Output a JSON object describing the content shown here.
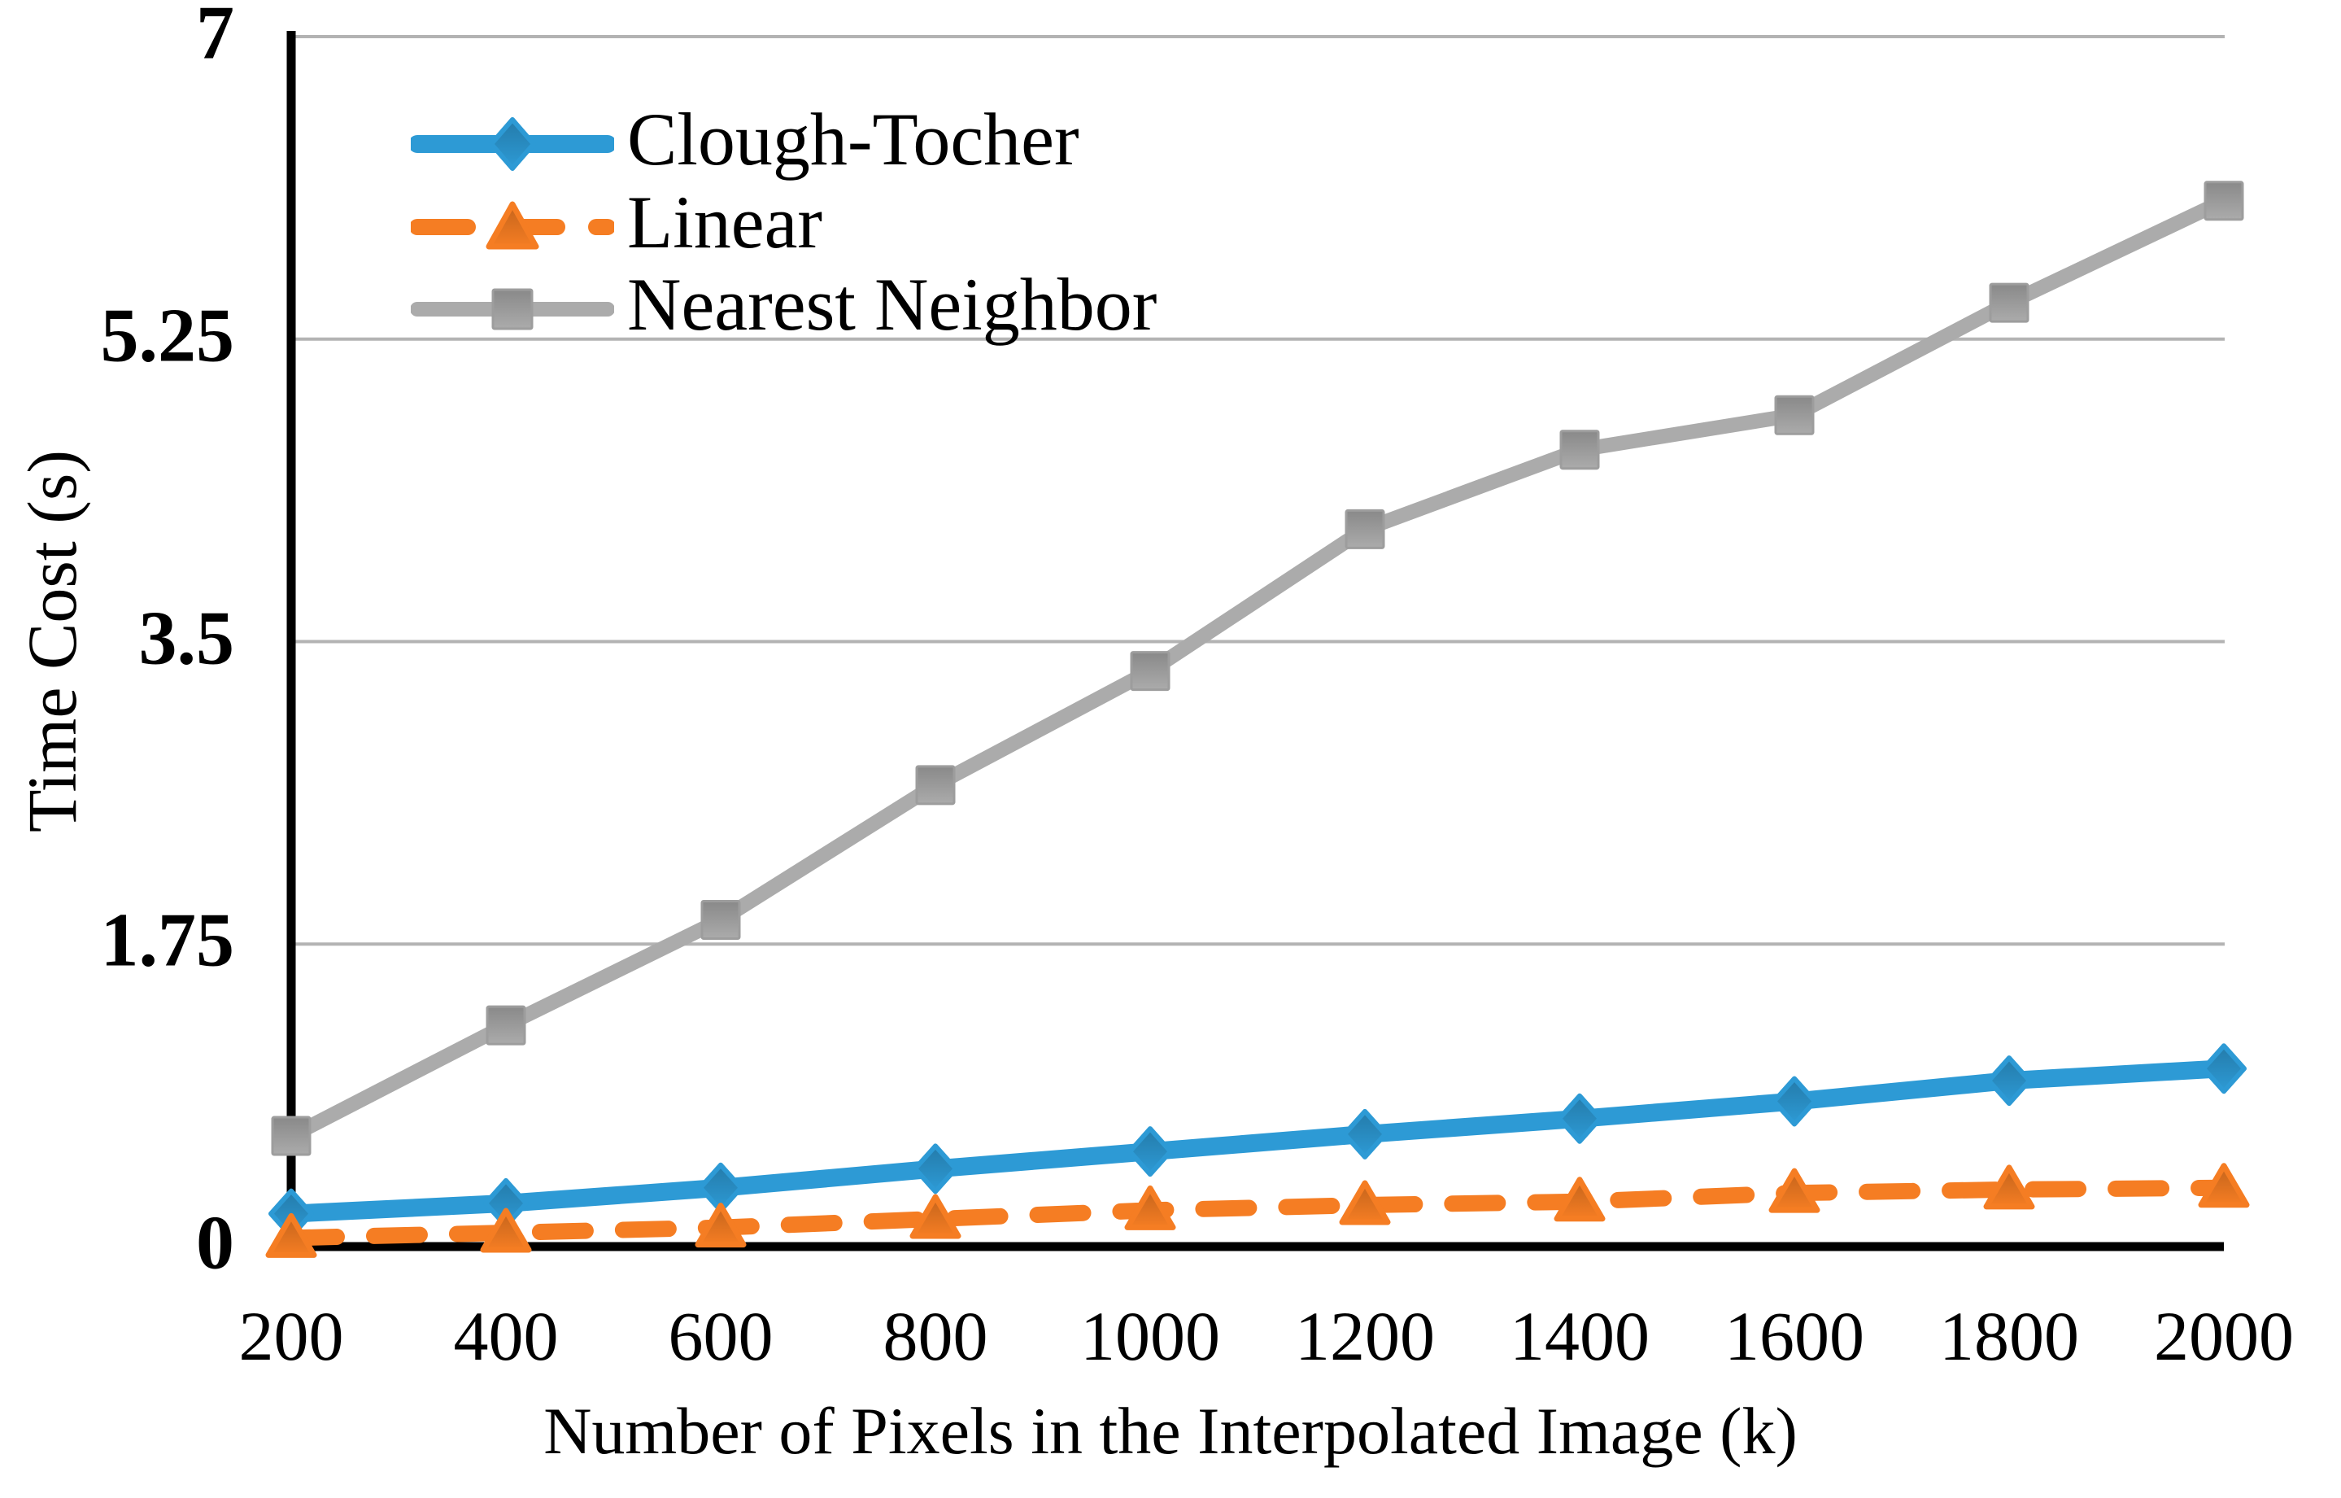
{
  "chart_data": {
    "type": "line",
    "title": "",
    "xlabel": "Number of Pixels in the Interpolated Image (k)",
    "ylabel": "Time Cost (s)",
    "categories": [
      200,
      400,
      600,
      800,
      1000,
      1200,
      1400,
      1600,
      1800,
      2000
    ],
    "x_tick_labels": [
      "200",
      "400",
      "600",
      "800",
      "1000",
      "1200",
      "1400",
      "1600",
      "1800",
      "2000"
    ],
    "y_ticks": [
      {
        "value": 0,
        "label": "0"
      },
      {
        "value": 1.75,
        "label": "1.75"
      },
      {
        "value": 3.5,
        "label": "3.5"
      },
      {
        "value": 5.25,
        "label": "5.25"
      },
      {
        "value": 7,
        "label": "7"
      }
    ],
    "ylim": [
      0,
      7
    ],
    "grid": "horizontal-only",
    "legend_position": "upper-left-inside",
    "series": [
      {
        "name": "Clough-Tocher",
        "color": "#2D9AD5",
        "marker": "diamond",
        "line_style": "solid",
        "values": [
          0.19,
          0.25,
          0.34,
          0.45,
          0.55,
          0.65,
          0.74,
          0.84,
          0.96,
          1.03
        ]
      },
      {
        "name": "Linear",
        "color": "#F57D23",
        "marker": "triangle",
        "line_style": "dashed",
        "values": [
          0.05,
          0.08,
          0.11,
          0.16,
          0.21,
          0.24,
          0.26,
          0.31,
          0.33,
          0.34
        ]
      },
      {
        "name": "Nearest Neighbor",
        "color": "#ABABAB",
        "marker": "square",
        "line_style": "solid",
        "values": [
          0.64,
          1.28,
          1.89,
          2.67,
          3.33,
          4.15,
          4.61,
          4.81,
          5.46,
          6.05
        ]
      }
    ],
    "axis_color": "#000000",
    "gridline_color": "#B3B3B3",
    "background_color": "#FFFFFF"
  }
}
